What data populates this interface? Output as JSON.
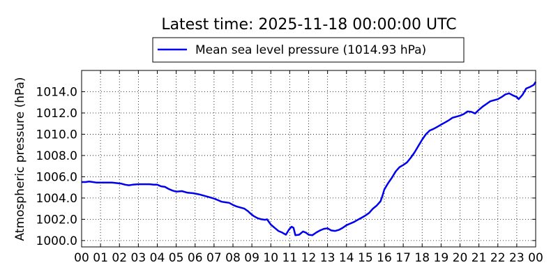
{
  "chart_data": {
    "type": "line",
    "title": "Latest time: 2025-11-18 00:00:00 UTC",
    "xlabel": "",
    "ylabel": "Atmospheric pressure (hPa)",
    "xlim": [
      0,
      24
    ],
    "ylim": [
      999.4,
      1016.0
    ],
    "grid": true,
    "grid_style": "dotted",
    "legend_position": "top-center",
    "x_ticks": [
      0,
      1,
      2,
      3,
      4,
      5,
      6,
      7,
      8,
      9,
      10,
      11,
      12,
      13,
      14,
      15,
      16,
      17,
      18,
      19,
      20,
      21,
      22,
      23,
      24
    ],
    "x_tick_labels": [
      "00",
      "01",
      "02",
      "03",
      "04",
      "05",
      "06",
      "07",
      "08",
      "09",
      "10",
      "11",
      "12",
      "13",
      "14",
      "15",
      "16",
      "17",
      "18",
      "19",
      "20",
      "21",
      "22",
      "23",
      "00"
    ],
    "y_ticks": [
      1000,
      1002,
      1004,
      1006,
      1008,
      1010,
      1012,
      1014
    ],
    "y_tick_labels": [
      "1000.0",
      "1002.0",
      "1004.0",
      "1006.0",
      "1008.0",
      "1010.0",
      "1012.0",
      "1014.0"
    ],
    "series": [
      {
        "name": "Mean sea level pressure (1014.93 hPa)",
        "color": "#0000ee",
        "x": [
          0,
          0.2,
          0.4,
          0.6,
          0.8,
          1.0,
          1.3,
          1.6,
          1.9,
          2.1,
          2.3,
          2.5,
          2.7,
          3.0,
          3.3,
          3.6,
          3.8,
          4.0,
          4.2,
          4.4,
          4.6,
          4.8,
          5.0,
          5.3,
          5.6,
          5.9,
          6.2,
          6.5,
          6.8,
          7.0,
          7.2,
          7.4,
          7.6,
          7.8,
          8.0,
          8.2,
          8.4,
          8.6,
          8.8,
          8.95,
          9.1,
          9.3,
          9.5,
          9.7,
          9.8,
          10.0,
          10.2,
          10.4,
          10.6,
          10.8,
          10.95,
          11.1,
          11.2,
          11.3,
          11.5,
          11.7,
          11.85,
          12.0,
          12.2,
          12.4,
          12.6,
          12.8,
          13.0,
          13.2,
          13.4,
          13.6,
          13.8,
          14.0,
          14.2,
          14.4,
          14.6,
          14.8,
          15.0,
          15.2,
          15.4,
          15.6,
          15.8,
          15.9,
          16.0,
          16.2,
          16.4,
          16.6,
          16.8,
          17.0,
          17.2,
          17.4,
          17.6,
          17.8,
          18.0,
          18.2,
          18.4,
          18.6,
          18.8,
          19.0,
          19.2,
          19.4,
          19.6,
          19.8,
          20.0,
          20.2,
          20.4,
          20.6,
          20.8,
          21.0,
          21.2,
          21.4,
          21.6,
          21.8,
          22.0,
          22.2,
          22.4,
          22.6,
          22.8,
          23.0,
          23.1,
          23.3,
          23.5,
          23.7,
          23.9,
          24.0
        ],
        "values": [
          1005.5,
          1005.5,
          1005.55,
          1005.5,
          1005.45,
          1005.45,
          1005.45,
          1005.45,
          1005.4,
          1005.35,
          1005.25,
          1005.2,
          1005.25,
          1005.3,
          1005.3,
          1005.3,
          1005.25,
          1005.25,
          1005.1,
          1005.05,
          1004.85,
          1004.7,
          1004.6,
          1004.65,
          1004.5,
          1004.45,
          1004.35,
          1004.2,
          1004.05,
          1003.95,
          1003.8,
          1003.65,
          1003.6,
          1003.55,
          1003.35,
          1003.2,
          1003.1,
          1003.0,
          1002.75,
          1002.5,
          1002.3,
          1002.1,
          1002.0,
          1001.95,
          1002.0,
          1001.5,
          1001.2,
          1000.9,
          1000.75,
          1000.55,
          1001.0,
          1001.3,
          1001.2,
          1000.5,
          1000.55,
          1000.85,
          1000.75,
          1000.55,
          1000.5,
          1000.75,
          1000.95,
          1001.1,
          1001.15,
          1000.95,
          1000.9,
          1001.0,
          1001.2,
          1001.45,
          1001.6,
          1001.75,
          1001.95,
          1002.15,
          1002.35,
          1002.6,
          1003.0,
          1003.3,
          1003.7,
          1004.2,
          1004.8,
          1005.4,
          1005.9,
          1006.5,
          1006.9,
          1007.1,
          1007.35,
          1007.8,
          1008.3,
          1008.9,
          1009.5,
          1010.0,
          1010.35,
          1010.5,
          1010.7,
          1010.9,
          1011.1,
          1011.3,
          1011.55,
          1011.65,
          1011.75,
          1011.9,
          1012.15,
          1012.1,
          1011.95,
          1012.3,
          1012.6,
          1012.85,
          1013.1,
          1013.2,
          1013.3,
          1013.5,
          1013.75,
          1013.85,
          1013.65,
          1013.5,
          1013.3,
          1013.7,
          1014.3,
          1014.45,
          1014.65,
          1014.93
        ]
      }
    ]
  }
}
